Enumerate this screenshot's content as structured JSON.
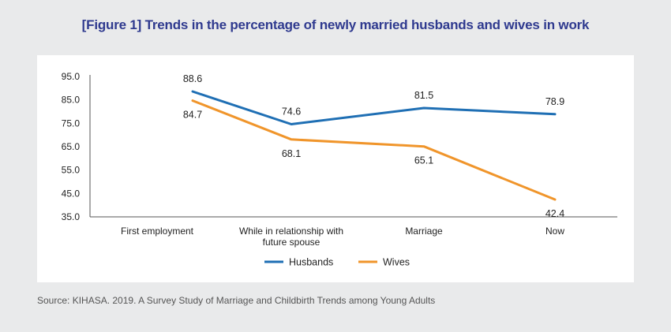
{
  "figure": {
    "title": "[Figure 1] Trends in the percentage of newly married husbands and wives in work",
    "source": "Source: KIHASA. 2019. A Survey Study of Marriage and Childbirth Trends among Young Adults"
  },
  "chart_data": {
    "type": "line",
    "title": "[Figure 1] Trends in the percentage of newly married husbands and wives in work",
    "categories": [
      [
        "First employment"
      ],
      [
        "While in relationship with",
        "future spouse"
      ],
      [
        "Marriage"
      ],
      [
        "Now"
      ]
    ],
    "y_ticks": [
      "95.0",
      "85.0",
      "75.0",
      "65.0",
      "55.0",
      "45.0",
      "35.0"
    ],
    "ylim": [
      35,
      95
    ],
    "grid": false,
    "legend_position": "bottom",
    "series": [
      {
        "name": "Husbands",
        "color": "#1f6fb4",
        "values": [
          88.6,
          74.6,
          81.5,
          78.9
        ],
        "labels": [
          "88.6",
          "74.6",
          "81.5",
          "78.9"
        ],
        "label_position": "above"
      },
      {
        "name": "Wives",
        "color": "#f0952b",
        "values": [
          84.7,
          68.1,
          65.1,
          42.4
        ],
        "labels": [
          "84.7",
          "68.1",
          "65.1",
          "42.4"
        ],
        "label_position": "below"
      }
    ]
  }
}
